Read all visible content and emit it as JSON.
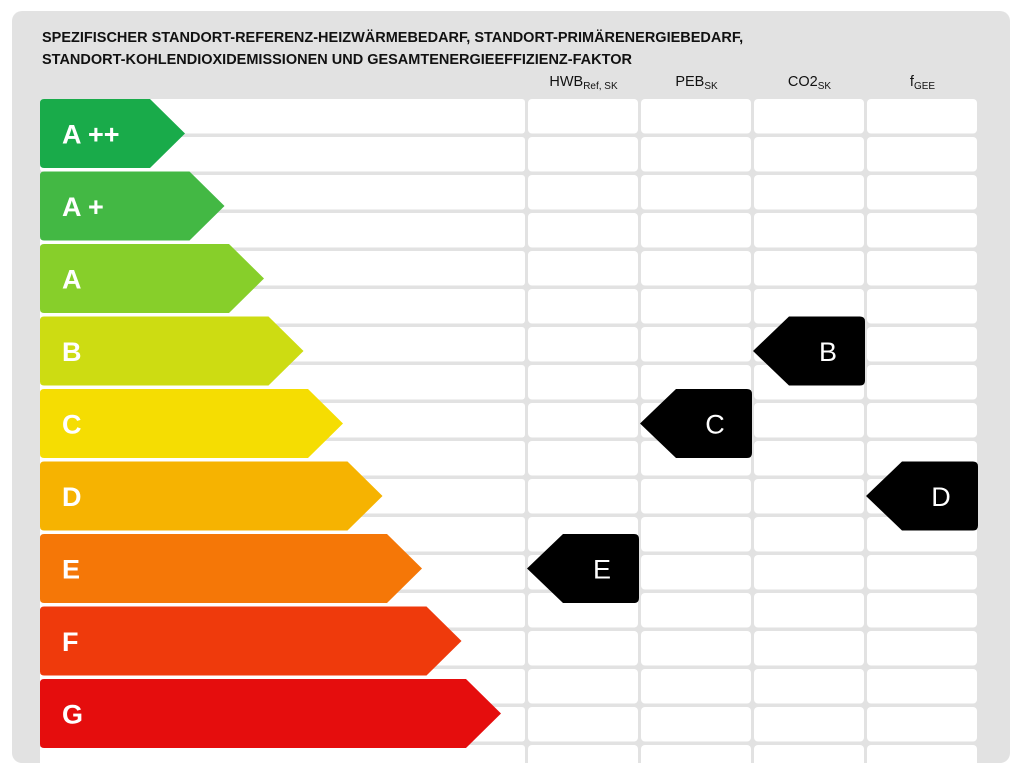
{
  "title_lines": [
    "SPEZIFISCHER STANDORT-REFERENZ-HEIZWÄRMEBEDARF, STANDORT-PRIMÄRENERGIEBEDARF,",
    "STANDORT-KOHLENDIOXIDEMISSIONEN UND GESAMTENERGIEEFFIZIENZ-FAKTOR"
  ],
  "columns": [
    {
      "base": "HWB",
      "sub": "Ref, SK"
    },
    {
      "base": "PEB",
      "sub": "SK"
    },
    {
      "base": "CO2",
      "sub": "SK"
    },
    {
      "base": "f",
      "sub": "GEE"
    }
  ],
  "colors": {
    "panel": "#e2e2e2",
    "row_band": "#ffffff",
    "marker": "#000000",
    "marker_text": "#ffffff",
    "class_label": "#ffffff"
  },
  "chart_data": {
    "type": "table",
    "classes": [
      {
        "label": "A ++",
        "color": "#19ab4a"
      },
      {
        "label": "A +",
        "color": "#43b844"
      },
      {
        "label": "A",
        "color": "#87cf2a"
      },
      {
        "label": "B",
        "color": "#cddc12"
      },
      {
        "label": "C",
        "color": "#f5dd02"
      },
      {
        "label": "D",
        "color": "#f6b301"
      },
      {
        "label": "E",
        "color": "#f57707"
      },
      {
        "label": "F",
        "color": "#ef3a0c"
      },
      {
        "label": "G",
        "color": "#e50d0d"
      }
    ],
    "ratings": [
      {
        "column": "HWB Ref, SK",
        "class": "E"
      },
      {
        "column": "PEB SK",
        "class": "C"
      },
      {
        "column": "CO2 SK",
        "class": "B"
      },
      {
        "column": "f GEE",
        "class": "D"
      }
    ]
  }
}
